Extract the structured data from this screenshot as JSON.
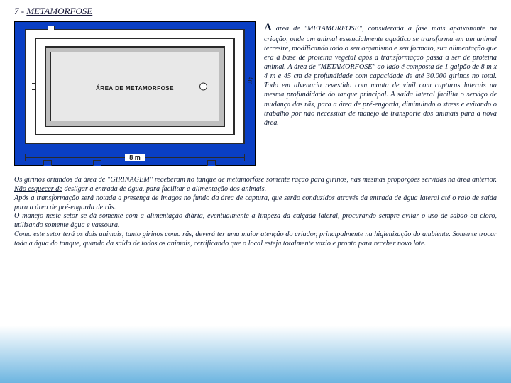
{
  "title_prefix": "7 - ",
  "title_main": "METAMORFOSE",
  "diagram": {
    "label": "ÁREA DE METAMORFOSE",
    "dim_vertical": "4m",
    "dim_horizontal": "8 m",
    "colors": {
      "frame": "#0a3fc4",
      "wall_border": "#2a2a2a",
      "tank_fill": "#bfbfbf",
      "tank_inner": "#e8e8e8",
      "background": "#ffffff"
    }
  },
  "right_paragraph": {
    "dropcap": "A",
    "text": " área de \"METAMORFOSE\", considerada a fase mais apaixonante na criação, onde um animal essencialmente aquático se transforma em um animal terrestre, modificando todo o seu organismo e seu formato, sua alimentação que era à base de proteína vegetal após a transformação passa a ser de proteína animal. A área de \"METAMORFOSE\" ao lado é composta de 1 galpão de 8 m x 4 m e 45 cm de profundidade com capacidade de até 30.000 girinos no total. Todo em alvenaria revestido com manta de vinil com capturas laterais na mesma profundidade do tanque principal. A saída lateral facilita o serviço de mudança das rãs, para a área de pré-engorda, diminuindo o stress e evitando o trabalho por não necessitar de manejo de transporte dos animais para a nova área."
  },
  "body": {
    "p1a": "Os girinos oriundos da área de \"GIRINAGEM\" receberam no tanque de metamorfose somente ração para girinos, nas mesmas proporções servidas na área anterior. ",
    "p1_underline": "Não esquecer de",
    "p1b": " desligar a entrada de água, para facilitar a alimentação dos animais.",
    "p2": "Após a transformação será notada a presença de imagos no fundo da área de captura, que serão conduzidos através da entrada de água lateral até o ralo de saída para a área de pré-engorda de rãs.",
    "p3": "O manejo neste setor se dá somente com a alimentação diária, eventualmente a limpeza da calçada lateral, procurando sempre evitar o uso de sabão ou cloro, utilizando somente água e vassoura.",
    "p4": "Como este setor terá os dois animais, tanto girinos como rãs, deverá ter uma maior atenção do criador, principalmente na higienização do ambiente. Somente trocar toda a água do tanque, quando da saída de todos os animais, certificando que o local esteja totalmente vazio e pronto para receber novo lote."
  }
}
